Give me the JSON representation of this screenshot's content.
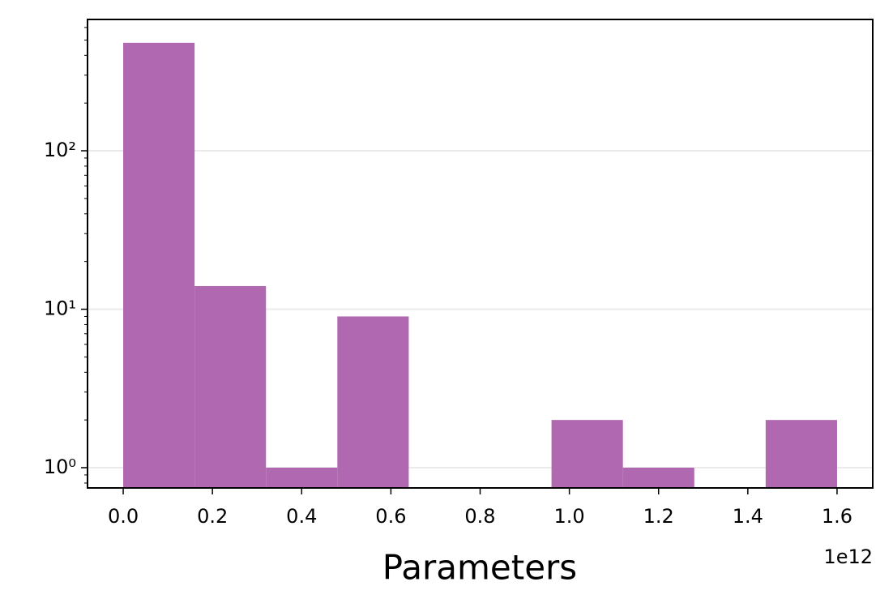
{
  "chart_data": {
    "type": "histogram",
    "xlabel": "Parameters",
    "x_offset_label": "1e12",
    "bins": [
      0,
      0.16,
      0.32,
      0.48,
      0.64,
      0.8,
      0.96,
      1.12,
      1.28,
      1.44,
      1.6
    ],
    "values": [
      480,
      14,
      1,
      9,
      0,
      0,
      2,
      1,
      0,
      2
    ],
    "color": "#b068b0",
    "xlim": [
      -0.08,
      1.68
    ],
    "xticks": [
      {
        "value": 0,
        "label": "0.0"
      },
      {
        "value": 0.2,
        "label": "0.2"
      },
      {
        "value": 0.4,
        "label": "0.4"
      },
      {
        "value": 0.6,
        "label": "0.6"
      },
      {
        "value": 0.8,
        "label": "0.8"
      },
      {
        "value": 1,
        "label": "1.0"
      },
      {
        "value": 1.2,
        "label": "1.2"
      },
      {
        "value": 1.4,
        "label": "1.4"
      },
      {
        "value": 1.6,
        "label": "1.6"
      }
    ],
    "ylim": [
      0.745,
      674
    ],
    "yscale": "log",
    "yticks": [
      {
        "value": 1,
        "label": "10⁰"
      },
      {
        "value": 10,
        "label": "10¹"
      },
      {
        "value": 100,
        "label": "10²"
      }
    ],
    "yminorticks": [
      0.8,
      0.9,
      2,
      3,
      4,
      5,
      6,
      7,
      8,
      9,
      20,
      30,
      40,
      50,
      60,
      70,
      80,
      90,
      200,
      300,
      400,
      500,
      600
    ],
    "grid": true
  }
}
